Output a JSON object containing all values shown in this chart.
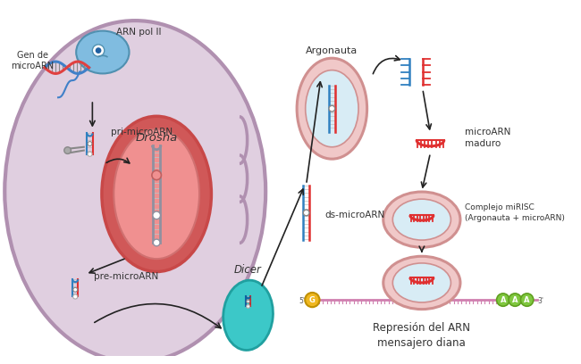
{
  "bg_white": "#ffffff",
  "bg_cell": "#dcc8dc",
  "cell_fill": "#e0cfe0",
  "cell_edge": "#b090b0",
  "nucleus_outer_fill": "#d05858",
  "nucleus_outer_edge": "#c84848",
  "nucleus_inner_fill": "#f09090",
  "nucleus_inner_edge": "#d07070",
  "dicer_fill": "#3cc8c8",
  "dicer_edge": "#20a0a0",
  "argonauta_fill": "#f0c8c8",
  "argonauta_edge": "#d09090",
  "argonauta_inner": "#d8ecf5",
  "mirisc_fill": "#f0c8c8",
  "mirisc_edge": "#d09090",
  "mirisc_inner": "#d8ecf5",
  "rna_blue": "#3080c0",
  "rna_red": "#e03030",
  "rna_pink": "#e070a0",
  "mrna_pink": "#d080b0",
  "dna_blue": "#4080c8",
  "dna_red": "#e04040",
  "arrow_color": "#222222",
  "label_color": "#333333",
  "polymerase_fill": "#80bce0",
  "polymerase_edge": "#5090b0",
  "cap_g_fill": "#f0b820",
  "cap_g_edge": "#c09000",
  "cap_a_fill": "#80c840",
  "cap_a_edge": "#60a020",
  "text_drosha": "Drosha",
  "text_dicer": "Dicer",
  "text_argonauta": "Argonauta",
  "text_pri": "pri-microARN",
  "text_pre": "pre-microARN",
  "text_ds": "ds-microARN",
  "text_mature": "microARN\nmaduro",
  "text_mirisc": "Complejo miRISC\n(Argonauta + microARN)",
  "text_repression": "Represión del ARN\nmensajero diana",
  "text_gen": "Gen de\nmicroARN",
  "text_arnpol": "ARN pol II"
}
